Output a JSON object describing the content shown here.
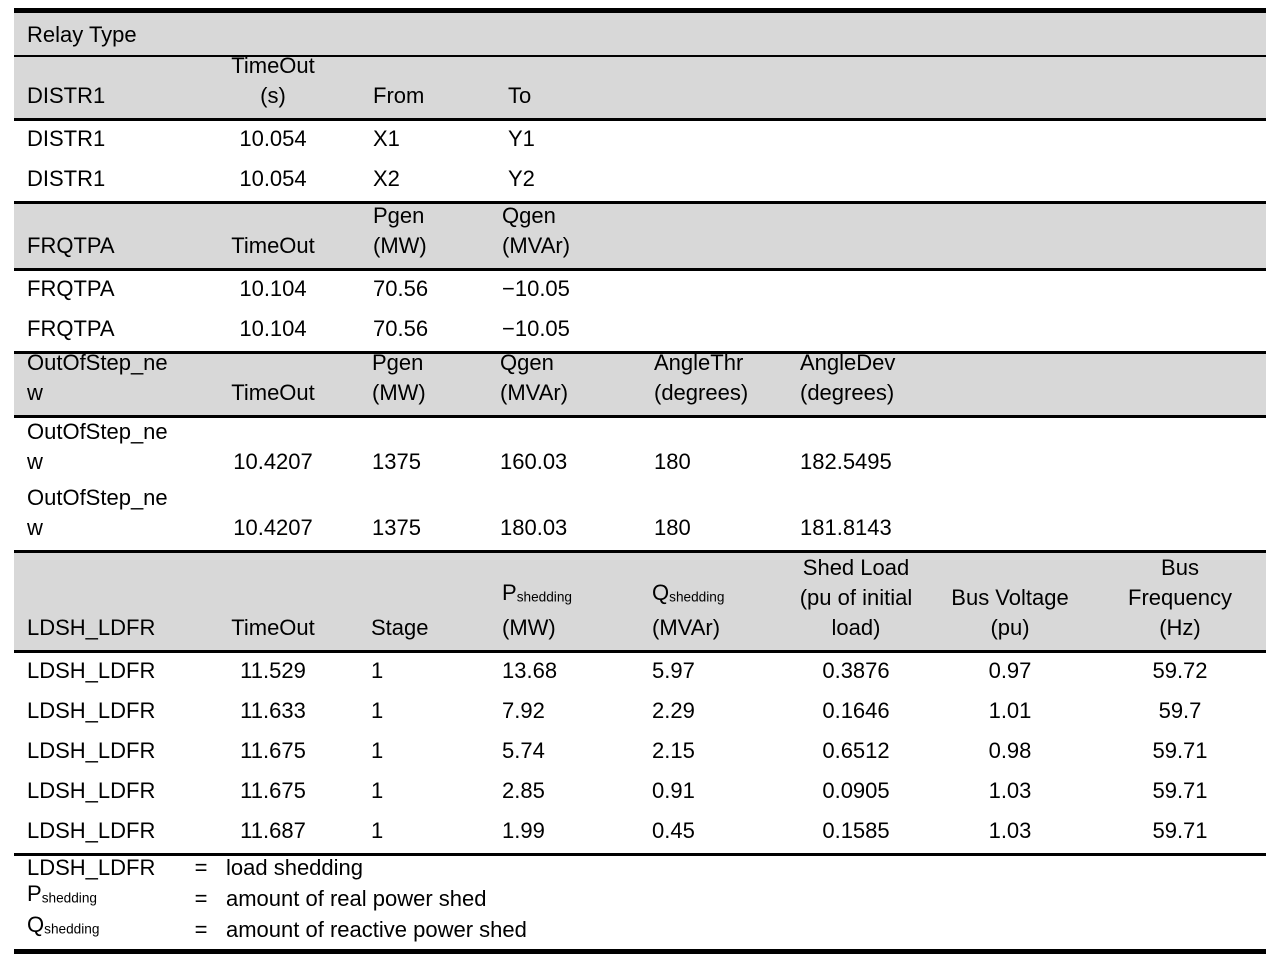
{
  "colors": {
    "header_shading": "#d8d8d8",
    "rule": "#000000",
    "text": "#000000"
  },
  "table": {
    "title": "Relay Type",
    "sections": [
      {
        "id": "distr1",
        "header": [
          "DISTR1",
          "TimeOut\n(s)",
          "From",
          "To"
        ],
        "rows": [
          [
            "DISTR1",
            "10.054",
            "X1",
            "Y1"
          ],
          [
            "DISTR1",
            "10.054",
            "X2",
            "Y2"
          ]
        ]
      },
      {
        "id": "frqtpa",
        "header": [
          "FRQTPA",
          "TimeOut",
          "Pgen\n(MW)",
          "Qgen\n(MVAr)"
        ],
        "rows": [
          [
            "FRQTPA",
            "10.104",
            "70.56",
            "−10.05"
          ],
          [
            "FRQTPA",
            "10.104",
            "70.56",
            "−10.05"
          ]
        ]
      },
      {
        "id": "outofstep",
        "header": [
          "OutOfStep_new",
          "TimeOut",
          "Pgen\n(MW)",
          "Qgen\n(MVAr)",
          "AngleThr\n(degrees)",
          "AngleDev\n(degrees)"
        ],
        "rows": [
          [
            "OutOfStep_new",
            "10.4207",
            "1375",
            "160.03",
            "180",
            "182.5495"
          ],
          [
            "OutOfStep_new",
            "10.4207",
            "1375",
            "180.03",
            "180",
            "181.8143"
          ]
        ]
      },
      {
        "id": "ldsh",
        "header": [
          "LDSH_LDFR",
          "TimeOut",
          "Stage",
          "P~shedding~\n(MW)",
          "Q~shedding~\n(MVAr)",
          "Shed Load\n(pu of initial\nload)",
          "Bus Voltage\n(pu)",
          "Bus\nFrequency\n(Hz)"
        ],
        "rows": [
          [
            "LDSH_LDFR",
            "11.529",
            "1",
            "13.68",
            "5.97",
            "0.3876",
            "0.97",
            "59.72"
          ],
          [
            "LDSH_LDFR",
            "11.633",
            "1",
            "7.92",
            "2.29",
            "0.1646",
            "1.01",
            "59.7"
          ],
          [
            "LDSH_LDFR",
            "11.675",
            "1",
            "5.74",
            "2.15",
            "0.6512",
            "0.98",
            "59.71"
          ],
          [
            "LDSH_LDFR",
            "11.675",
            "1",
            "2.85",
            "0.91",
            "0.0905",
            "1.03",
            "59.71"
          ],
          [
            "LDSH_LDFR",
            "11.687",
            "1",
            "1.99",
            "0.45",
            "0.1585",
            "1.03",
            "59.71"
          ]
        ]
      }
    ]
  },
  "legend": [
    {
      "term": "LDSH_LDFR",
      "eq": "=",
      "definition": "load shedding"
    },
    {
      "term": "P~shedding~",
      "eq": "=",
      "definition": "amount of real power shed"
    },
    {
      "term": "Q~shedding~",
      "eq": "=",
      "definition": "amount of reactive power shed"
    }
  ]
}
